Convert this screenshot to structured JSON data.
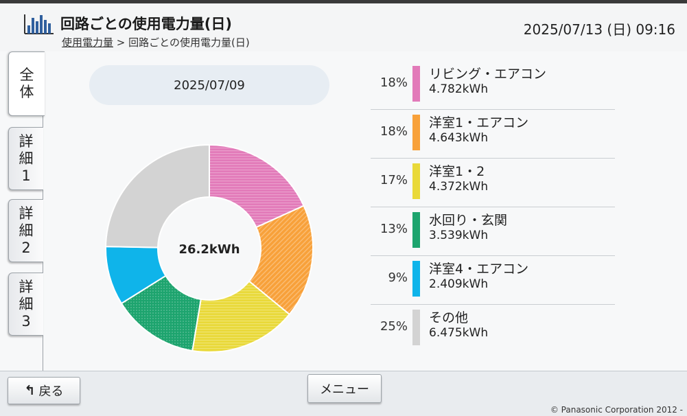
{
  "header": {
    "title": "回路ごとの使用電力量(日)",
    "breadcrumb_link": "使用電力量",
    "breadcrumb_separator": ">",
    "breadcrumb_current": "回路ごとの使用電力量(日)",
    "datetime": "2025/07/13 (日) 09:16"
  },
  "tabs": [
    {
      "label_lines": [
        "全",
        "体"
      ],
      "active": true
    },
    {
      "label_lines": [
        "詳",
        "細",
        "1"
      ],
      "active": false
    },
    {
      "label_lines": [
        "詳",
        "細",
        "2"
      ],
      "active": false
    },
    {
      "label_lines": [
        "詳",
        "細",
        "3"
      ],
      "active": false
    }
  ],
  "date_selector": {
    "label": "2025/07/09"
  },
  "chart_data": {
    "type": "pie",
    "style": "donut",
    "center_label": "26.2kWh",
    "slices": [
      {
        "name": "リビング・エアコン",
        "percent_label": "18%",
        "value_label": "4.782kWh",
        "value": 4.782,
        "color": "#e27ab9"
      },
      {
        "name": "洋室1・エアコン",
        "percent_label": "18%",
        "value_label": "4.643kWh",
        "value": 4.643,
        "color": "#f8a13a"
      },
      {
        "name": "洋室1・2",
        "percent_label": "17%",
        "value_label": "4.372kWh",
        "value": 4.372,
        "color": "#e9d939"
      },
      {
        "name": "水回り・玄関",
        "percent_label": "13%",
        "value_label": "3.539kWh",
        "value": 3.539,
        "color": "#1da46e"
      },
      {
        "name": "洋室4・エアコン",
        "percent_label": "9%",
        "value_label": "2.409kWh",
        "value": 2.409,
        "color": "#0fb4ea"
      },
      {
        "name": "その他",
        "percent_label": "25%",
        "value_label": "6.475kWh",
        "value": 6.475,
        "color": "#d3d3d3"
      }
    ]
  },
  "footer": {
    "back_label": "戻る",
    "menu_label": "メニュー",
    "copyright": "© Panasonic Corporation 2012 -"
  }
}
